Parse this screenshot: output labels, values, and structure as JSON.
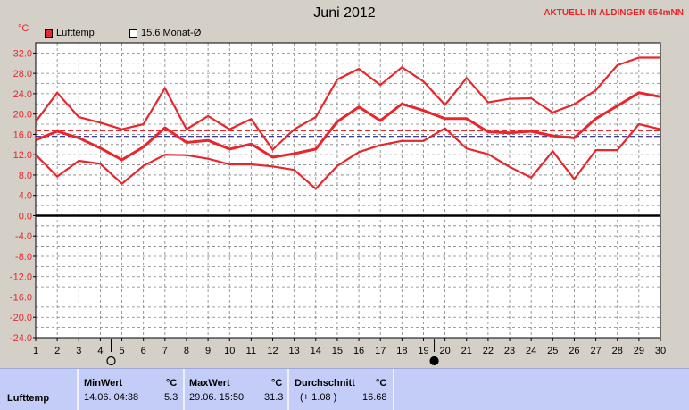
{
  "title": "Juni 2012",
  "station": "AKTUELL IN ALDINGEN 654mNN",
  "unit": "°C",
  "legend": {
    "series_label": "Lufttemp",
    "mean_label": "15.6 Monat-Ø"
  },
  "colors": {
    "series": "#e8262b",
    "mean": "#000080",
    "grid": "#808080",
    "plot_bg": "#ffffff",
    "table_bg": "#c4cdf7"
  },
  "chart_data": {
    "type": "line",
    "title": "Juni 2012",
    "ylabel": "°C",
    "ylim": [
      -24,
      34
    ],
    "yticks": [
      32.0,
      28.0,
      24.0,
      20.0,
      16.0,
      12.0,
      8.0,
      4.0,
      0.0,
      -4.0,
      -8.0,
      -12.0,
      -16.0,
      -20.0,
      -24.0
    ],
    "yticklabels": [
      "32.0",
      "28.0",
      "24.0",
      "20.0",
      "16.0",
      "12.0",
      "8.0",
      "4.0",
      "0.0",
      "-4.0",
      "-8.0",
      "-12.0",
      "-16.0",
      "-20.0",
      "-24.0"
    ],
    "x": [
      1,
      2,
      3,
      4,
      5,
      6,
      7,
      8,
      9,
      10,
      11,
      12,
      13,
      14,
      15,
      16,
      17,
      18,
      19,
      20,
      21,
      22,
      23,
      24,
      25,
      26,
      27,
      28,
      29,
      30
    ],
    "xticklabels": [
      "1",
      "2",
      "3",
      "4",
      "5",
      "6",
      "7",
      "8",
      "9",
      "10",
      "11",
      "12",
      "13",
      "14",
      "15",
      "16",
      "17",
      "18",
      "19",
      "20",
      "21",
      "22",
      "23",
      "24",
      "25",
      "26",
      "27",
      "28",
      "29",
      "30"
    ],
    "grid": true,
    "legend_position": "top-left",
    "series": [
      {
        "name": "Lufttemp",
        "role": "max",
        "values": [
          18.5,
          24.2,
          19.4,
          18.3,
          17.0,
          18.0,
          25.1,
          17.0,
          19.6,
          17.0,
          19.0,
          13.0,
          17.0,
          19.4,
          26.8,
          28.9,
          25.7,
          29.2,
          26.4,
          21.8,
          27.1,
          22.3,
          23.0,
          23.1,
          20.3,
          21.9,
          24.7,
          29.6,
          31.1,
          31.1
        ]
      },
      {
        "name": "Lufttemp",
        "role": "mean",
        "values": [
          14.9,
          16.6,
          15.3,
          13.3,
          11.0,
          13.5,
          17.3,
          14.4,
          14.8,
          13.1,
          14.1,
          11.5,
          12.2,
          13.1,
          18.5,
          21.4,
          18.7,
          22.0,
          20.7,
          19.1,
          19.1,
          16.5,
          16.3,
          16.6,
          15.7,
          15.3,
          19.1,
          21.6,
          24.2,
          23.4
        ]
      },
      {
        "name": "Lufttemp",
        "role": "min",
        "values": [
          12.0,
          7.7,
          10.8,
          10.2,
          6.3,
          9.8,
          12.0,
          11.9,
          11.2,
          10.1,
          10.1,
          9.7,
          9.0,
          5.3,
          9.8,
          12.5,
          13.9,
          14.7,
          14.7,
          17.2,
          13.2,
          12.1,
          9.6,
          7.5,
          12.7,
          7.2,
          12.9,
          12.9,
          18.0,
          17.0
        ]
      }
    ],
    "reference_lines": [
      {
        "value": 15.6,
        "style": "dashed",
        "color": "#000080"
      },
      {
        "value": 16.68,
        "style": "dashed",
        "color": "#e8262b"
      }
    ],
    "moon_markers": [
      {
        "day": 4.5,
        "phase": "new"
      },
      {
        "day": 19.5,
        "phase": "full"
      }
    ]
  },
  "table": {
    "col1_hdr": "MinWert",
    "col1_unit": "°C",
    "col2_hdr": "MaxWert",
    "col2_unit": "°C",
    "col3_hdr": "Durchschnitt",
    "col3_unit": "°C",
    "row_label": "Lufttemp",
    "min_time": "14.06.  04:38",
    "min_val": "5.3",
    "max_time": "29.06.  15:50",
    "max_val": "31.3",
    "avg_delta": "(+ 1.08 )",
    "avg_val": "16.68"
  }
}
